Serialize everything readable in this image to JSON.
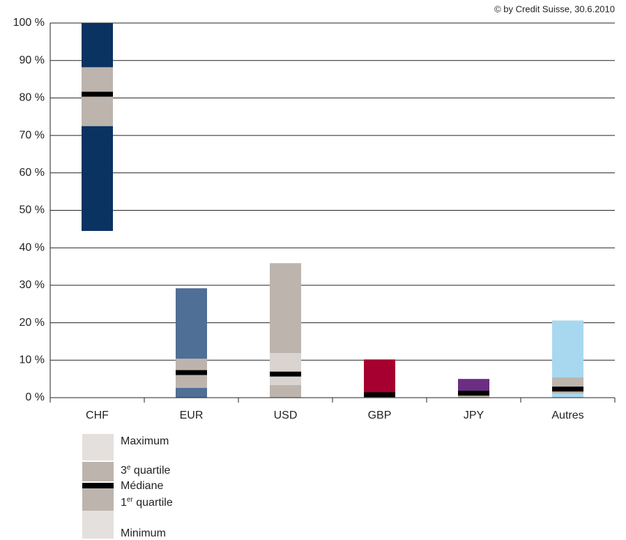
{
  "chart_data": {
    "type": "range_bar",
    "source": "© by Credit Suisse, 30.6.2010",
    "categories": [
      "CHF",
      "EUR",
      "USD",
      "GBP",
      "JPY",
      "Autres"
    ],
    "min": [
      44.5,
      0,
      0,
      0,
      0,
      0
    ],
    "q1": [
      72.5,
      2.6,
      3.4,
      0,
      0,
      1.1
    ],
    "median": [
      81,
      6.7,
      6.3,
      0.8,
      1.2,
      2.3
    ],
    "q3": [
      88.2,
      10.4,
      11.9,
      1.3,
      1.8,
      5.4
    ],
    "max": [
      100,
      29.2,
      35.9,
      10.2,
      5,
      20.6
    ],
    "colors": [
      "#0b3361",
      "#4f6f96",
      "#bcb4ad",
      "#a5002f",
      "#6b2e83",
      "#a8d8f0"
    ],
    "box_colors": [
      "#bcb4ad",
      "#bcb4ad",
      "#d9d4d0",
      "#bcb4ad",
      "#bcb4ad",
      "#bcb4ad"
    ],
    "median_color": "#000000",
    "ylim": [
      0,
      100
    ],
    "yticks": [
      {
        "value": 0,
        "label": "0 %"
      },
      {
        "value": 10,
        "label": "10 %"
      },
      {
        "value": 20,
        "label": "20 %"
      },
      {
        "value": 30,
        "label": "30 %"
      },
      {
        "value": 40,
        "label": "40 %"
      },
      {
        "value": 50,
        "label": "50 %"
      },
      {
        "value": 60,
        "label": "60 %"
      },
      {
        "value": 70,
        "label": "70 %"
      },
      {
        "value": 80,
        "label": "80 %"
      },
      {
        "value": 90,
        "label": "90 %"
      },
      {
        "value": 100,
        "label": "100 %"
      }
    ],
    "grid": true,
    "legend": [
      {
        "parts": [
          "Maximum"
        ],
        "color": "#e4e0dd"
      },
      {
        "parts": [
          "3",
          "e",
          " quartile"
        ],
        "color": "#bcb4ad"
      },
      {
        "parts": [
          "Médiane"
        ],
        "color": "#000000"
      },
      {
        "parts": [
          "1",
          "er",
          " quartile"
        ],
        "color": "#bcb4ad"
      },
      {
        "parts": [
          "Minimum"
        ],
        "color": "#e4e0dd"
      }
    ]
  }
}
